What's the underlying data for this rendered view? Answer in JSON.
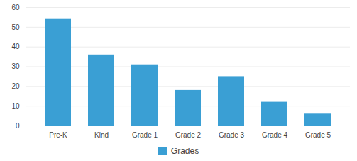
{
  "chart_data": {
    "type": "bar",
    "categories": [
      "Pre-K",
      "Kind",
      "Grade 1",
      "Grade 2",
      "Grade 3",
      "Grade 4",
      "Grade 5"
    ],
    "series": [
      {
        "name": "Grades",
        "color": "#3a9fd4",
        "values": [
          54,
          36,
          31,
          18,
          25,
          12,
          6
        ]
      }
    ],
    "ylim": [
      0,
      60
    ],
    "yticks": [
      0,
      10,
      20,
      30,
      40,
      50,
      60
    ],
    "grid": true,
    "legend": "bottom"
  }
}
